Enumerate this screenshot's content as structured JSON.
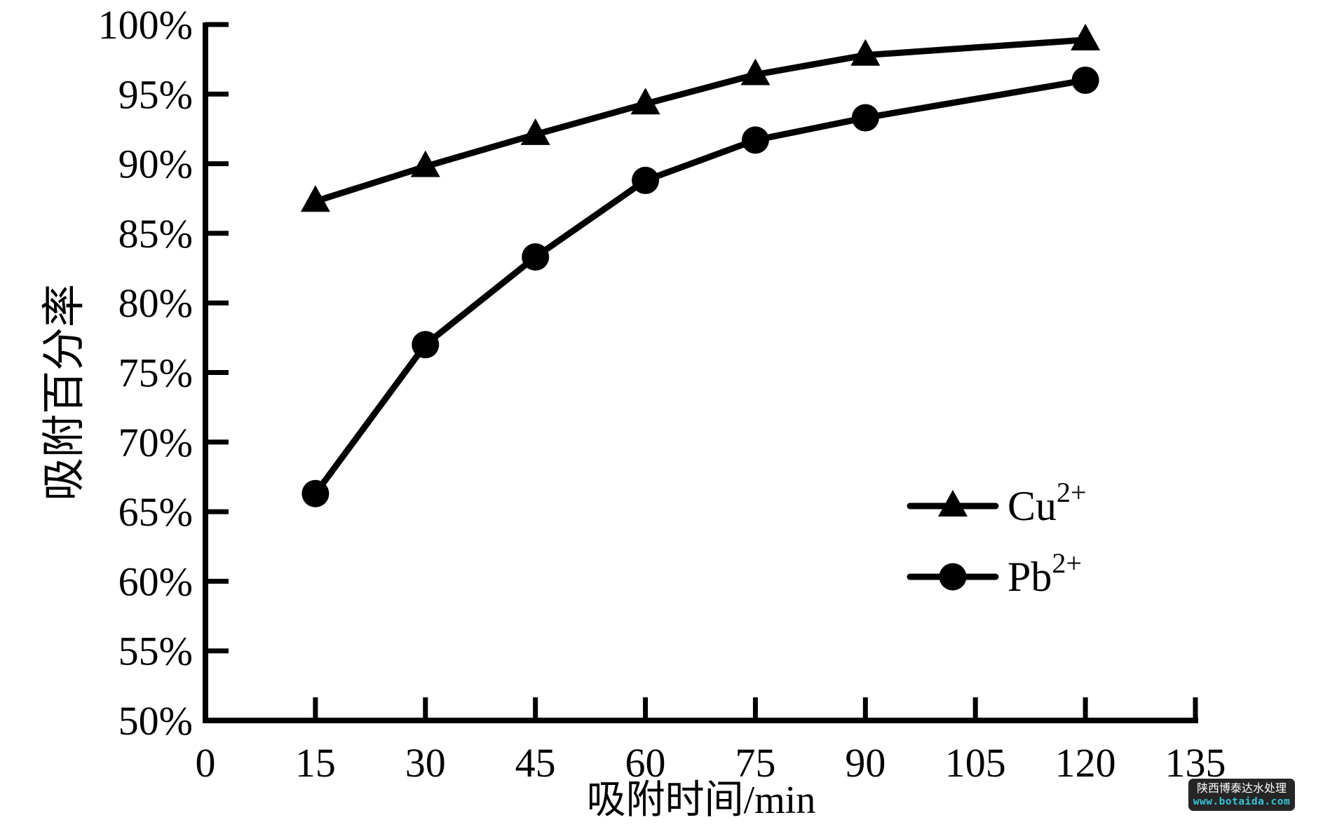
{
  "watermark": {
    "line1": "陕西博泰达水处理",
    "line2": "www.botaida.com",
    "bg_color": "#262626",
    "line1_color": "#ffffff",
    "line2_color": "#35c4d8"
  },
  "chart_data": {
    "type": "line",
    "title": "",
    "xlabel": "吸附时间/min",
    "ylabel": "吸附百分率",
    "xlim": [
      0,
      135
    ],
    "ylim": [
      50,
      100
    ],
    "grid": false,
    "axis_color": "#000000",
    "x_ticks": [
      0,
      15,
      30,
      45,
      60,
      75,
      90,
      105,
      120,
      135
    ],
    "y_ticks": [
      "50%",
      "55%",
      "60%",
      "65%",
      "70%",
      "75%",
      "80%",
      "85%",
      "90%",
      "95%",
      "100%"
    ],
    "legend_position": "right-center",
    "x": [
      15,
      30,
      45,
      60,
      75,
      90,
      120
    ],
    "series": [
      {
        "name": "Cu2+",
        "label_base": "Cu",
        "label_sup": "2+",
        "marker": "triangle",
        "color": "#000000",
        "values": [
          87.3,
          89.8,
          92.1,
          94.3,
          96.4,
          97.8,
          98.9
        ]
      },
      {
        "name": "Pb2+",
        "label_base": "Pb",
        "label_sup": "2+",
        "marker": "circle",
        "color": "#000000",
        "values": [
          66.3,
          77.0,
          83.3,
          88.8,
          91.7,
          93.3,
          96.0
        ]
      }
    ]
  }
}
